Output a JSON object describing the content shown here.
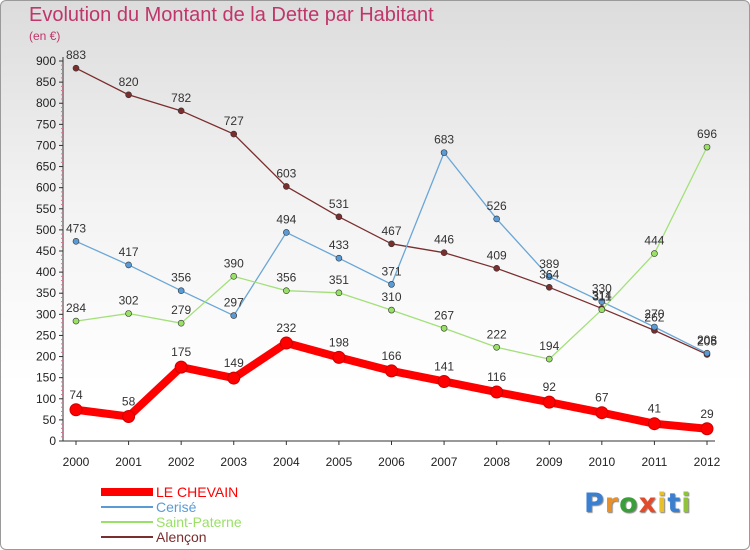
{
  "chart_data": {
    "type": "line",
    "title": "Evolution du Montant de la Dette par Habitant",
    "unit_label": "(en €)",
    "xlabel": "",
    "ylabel": "",
    "categories": [
      "2000",
      "2001",
      "2002",
      "2003",
      "2004",
      "2005",
      "2006",
      "2007",
      "2008",
      "2009",
      "2010",
      "2011",
      "2012"
    ],
    "ylim": [
      0,
      900
    ],
    "yticks": [
      0,
      50,
      100,
      150,
      200,
      250,
      300,
      350,
      400,
      450,
      500,
      550,
      600,
      650,
      700,
      750,
      800,
      850,
      900
    ],
    "grid": false,
    "legend_position": "bottom-left",
    "series": [
      {
        "name": "LE CHEVAIN",
        "color": "#ff0000",
        "values": [
          74,
          58,
          175,
          149,
          232,
          198,
          166,
          141,
          116,
          92,
          67,
          41,
          29
        ]
      },
      {
        "name": "Cerisé",
        "color": "#5b9bd5",
        "values": [
          473,
          417,
          356,
          297,
          494,
          433,
          371,
          683,
          526,
          389,
          330,
          270,
          208
        ]
      },
      {
        "name": "Saint-Paterne",
        "color": "#99e066",
        "values": [
          284,
          302,
          279,
          390,
          356,
          351,
          310,
          267,
          222,
          194,
          311,
          444,
          696
        ]
      },
      {
        "name": "Alençon",
        "color": "#7a2e2e",
        "values": [
          883,
          820,
          782,
          727,
          603,
          531,
          467,
          446,
          409,
          364,
          314,
          262,
          205
        ]
      }
    ]
  },
  "logo": {
    "letters": [
      "P",
      "r",
      "o",
      "x",
      "i",
      "t",
      "i"
    ],
    "colors": [
      "#3a7fd0",
      "#e8912a",
      "#3a9f3a",
      "#e24a2a",
      "#e8c02a",
      "#3a7fd0",
      "#8fc43a"
    ]
  }
}
